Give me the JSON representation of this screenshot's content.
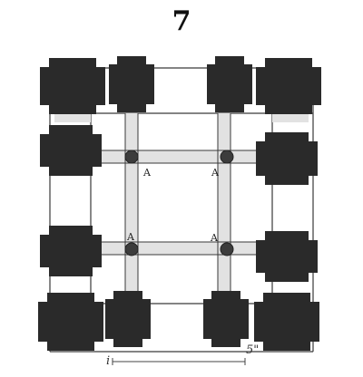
{
  "figure_number": "7",
  "colors": {
    "pier_fill": "#2a2a2a",
    "band_fill": "#e2e2e2",
    "line": "#3a3a3a",
    "background": "#ffffff"
  },
  "labels": {
    "upper_left": "A",
    "upper_right": "A",
    "lower_left": "A",
    "lower_right": "A"
  },
  "scale": {
    "start_label": "i",
    "end_label": "5\""
  }
}
